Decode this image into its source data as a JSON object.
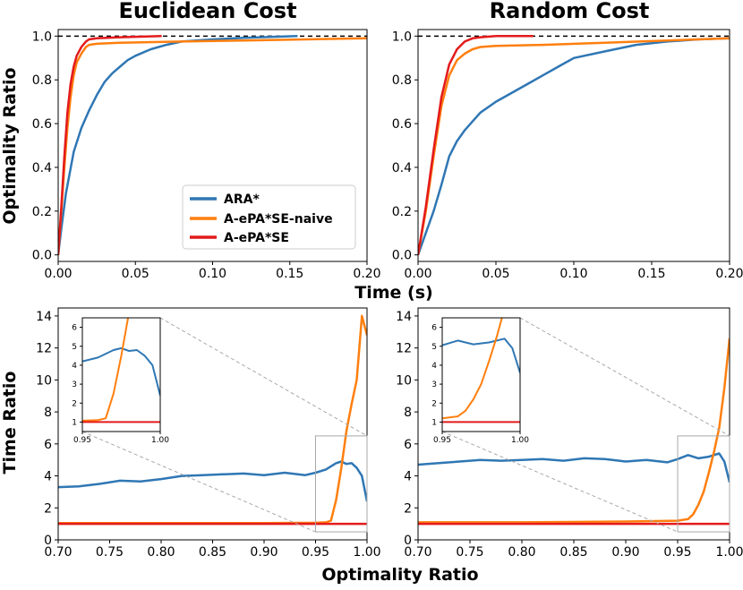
{
  "colors": {
    "ara": "#2f77b4",
    "naive": "#ff7f0e",
    "epase": "#e31a1c",
    "ref": "#000000",
    "zoom": "#a8a8a8"
  },
  "labels": {
    "title_left": "Euclidean Cost",
    "title_right": "Random Cost",
    "ylabel_top": "Optimality Ratio",
    "ylabel_bottom": "Time Ratio",
    "xlabel_top": "Time (s)",
    "xlabel_bottom": "Optimality Ratio"
  },
  "legend": [
    "ARA*",
    "A-ePA*SE-naive",
    "A-ePA*SE"
  ],
  "ticks": {
    "top_x": [
      "0.00",
      "0.05",
      "0.10",
      "0.15",
      "0.20"
    ],
    "top_y": [
      "0.0",
      "0.2",
      "0.4",
      "0.6",
      "0.8",
      "1.0"
    ],
    "bottom_x": [
      "0.70",
      "0.75",
      "0.80",
      "0.85",
      "0.90",
      "0.95",
      "1.00"
    ],
    "bottom_y": [
      "0",
      "2",
      "4",
      "6",
      "8",
      "10",
      "12",
      "14"
    ],
    "inset_x": [
      "0.95",
      "1.00"
    ],
    "inset_y": [
      "1",
      "2",
      "3",
      "4",
      "5",
      "6"
    ]
  },
  "chart_data": [
    {
      "type": "line",
      "panel": "top-left",
      "title": "Euclidean Cost",
      "xlabel": "Time (s)",
      "ylabel": "Optimality Ratio",
      "xlim": [
        0,
        0.2
      ],
      "ylim": [
        -0.03,
        1.03
      ],
      "reference_line": 1.0,
      "legend_position": "lower-right",
      "series": [
        {
          "name": "ARA*",
          "x": [
            0,
            0.002,
            0.005,
            0.01,
            0.015,
            0.02,
            0.025,
            0.03,
            0.035,
            0.04,
            0.045,
            0.05,
            0.06,
            0.07,
            0.08,
            0.1,
            0.12,
            0.155
          ],
          "y": [
            0,
            0.12,
            0.28,
            0.47,
            0.58,
            0.66,
            0.73,
            0.79,
            0.83,
            0.86,
            0.89,
            0.91,
            0.94,
            0.96,
            0.975,
            0.985,
            0.992,
            1.0
          ]
        },
        {
          "name": "A-ePA*SE-naive",
          "x": [
            0,
            0.002,
            0.004,
            0.006,
            0.008,
            0.01,
            0.012,
            0.015,
            0.018,
            0.02,
            0.025,
            0.04,
            0.08,
            0.12,
            0.16,
            0.2
          ],
          "y": [
            0,
            0.2,
            0.4,
            0.58,
            0.72,
            0.82,
            0.88,
            0.92,
            0.95,
            0.96,
            0.965,
            0.97,
            0.975,
            0.98,
            0.985,
            0.99
          ]
        },
        {
          "name": "A-ePA*SE",
          "x": [
            0,
            0.002,
            0.004,
            0.006,
            0.008,
            0.01,
            0.012,
            0.015,
            0.018,
            0.02,
            0.025,
            0.04,
            0.067
          ],
          "y": [
            0,
            0.22,
            0.45,
            0.65,
            0.78,
            0.86,
            0.91,
            0.95,
            0.975,
            0.985,
            0.99,
            0.995,
            1.0
          ]
        }
      ]
    },
    {
      "type": "line",
      "panel": "top-right",
      "title": "Random Cost",
      "xlabel": "Time (s)",
      "ylabel": "Optimality Ratio",
      "xlim": [
        0,
        0.2
      ],
      "ylim": [
        -0.03,
        1.03
      ],
      "reference_line": 1.0,
      "series": [
        {
          "name": "ARA*",
          "x": [
            0,
            0.005,
            0.01,
            0.015,
            0.02,
            0.025,
            0.03,
            0.035,
            0.04,
            0.05,
            0.06,
            0.07,
            0.08,
            0.09,
            0.1,
            0.12,
            0.14,
            0.16,
            0.18,
            0.2
          ],
          "y": [
            0,
            0.1,
            0.2,
            0.32,
            0.45,
            0.52,
            0.57,
            0.61,
            0.65,
            0.7,
            0.74,
            0.78,
            0.82,
            0.86,
            0.9,
            0.93,
            0.96,
            0.975,
            0.985,
            0.99
          ]
        },
        {
          "name": "A-ePA*SE-naive",
          "x": [
            0,
            0.005,
            0.01,
            0.015,
            0.02,
            0.025,
            0.03,
            0.035,
            0.04,
            0.05,
            0.08,
            0.12,
            0.16,
            0.2
          ],
          "y": [
            0,
            0.2,
            0.45,
            0.68,
            0.82,
            0.89,
            0.92,
            0.94,
            0.95,
            0.955,
            0.96,
            0.97,
            0.98,
            0.99
          ]
        },
        {
          "name": "A-ePA*SE",
          "x": [
            0,
            0.005,
            0.01,
            0.015,
            0.02,
            0.025,
            0.03,
            0.035,
            0.04,
            0.05,
            0.074
          ],
          "y": [
            0,
            0.22,
            0.48,
            0.72,
            0.87,
            0.94,
            0.975,
            0.99,
            0.995,
            1.0,
            1.0
          ]
        }
      ]
    },
    {
      "type": "line",
      "panel": "bottom-left",
      "xlabel": "Optimality Ratio",
      "ylabel": "Time Ratio",
      "xlim": [
        0.7,
        1.0
      ],
      "ylim": [
        0,
        14.5
      ],
      "zoom_box": {
        "xlim": [
          0.95,
          1.0
        ],
        "ylim": [
          0.5,
          6.5
        ]
      },
      "series": [
        {
          "name": "ARA*",
          "x": [
            0.7,
            0.72,
            0.74,
            0.76,
            0.78,
            0.8,
            0.82,
            0.84,
            0.86,
            0.88,
            0.9,
            0.92,
            0.94,
            0.95,
            0.96,
            0.97,
            0.975,
            0.98,
            0.985,
            0.99,
            0.995,
            1.0
          ],
          "y": [
            3.3,
            3.35,
            3.5,
            3.7,
            3.65,
            3.8,
            4.0,
            4.05,
            4.1,
            4.15,
            4.05,
            4.2,
            4.05,
            4.2,
            4.4,
            4.8,
            4.9,
            4.75,
            4.8,
            4.5,
            4.0,
            2.4
          ]
        },
        {
          "name": "A-ePA*SE-naive",
          "x": [
            0.7,
            0.8,
            0.9,
            0.95,
            0.96,
            0.965,
            0.97,
            0.975,
            0.98,
            0.985,
            0.99,
            0.995,
            1.0
          ],
          "y": [
            1.05,
            1.05,
            1.05,
            1.07,
            1.1,
            1.2,
            2.5,
            4.5,
            6.8,
            8.5,
            10.0,
            14.0,
            12.8
          ]
        },
        {
          "name": "A-ePA*SE",
          "x": [
            0.7,
            1.0
          ],
          "y": [
            1.0,
            1.0
          ]
        }
      ]
    },
    {
      "type": "line",
      "panel": "bottom-right",
      "xlabel": "Optimality Ratio",
      "ylabel": "Time Ratio",
      "xlim": [
        0.7,
        1.0
      ],
      "ylim": [
        0,
        14.5
      ],
      "zoom_box": {
        "xlim": [
          0.95,
          1.0
        ],
        "ylim": [
          0.5,
          6.5
        ]
      },
      "series": [
        {
          "name": "ARA*",
          "x": [
            0.7,
            0.72,
            0.74,
            0.76,
            0.78,
            0.8,
            0.82,
            0.84,
            0.86,
            0.88,
            0.9,
            0.92,
            0.94,
            0.95,
            0.96,
            0.97,
            0.98,
            0.99,
            0.995,
            1.0
          ],
          "y": [
            4.7,
            4.8,
            4.9,
            5.0,
            4.95,
            5.0,
            5.05,
            4.95,
            5.1,
            5.05,
            4.9,
            5.0,
            4.85,
            5.05,
            5.3,
            5.1,
            5.2,
            5.4,
            4.9,
            3.6
          ]
        },
        {
          "name": "A-ePA*SE-naive",
          "x": [
            0.7,
            0.8,
            0.9,
            0.95,
            0.96,
            0.965,
            0.97,
            0.975,
            0.98,
            0.985,
            0.99,
            0.995,
            1.0
          ],
          "y": [
            1.1,
            1.1,
            1.15,
            1.2,
            1.3,
            1.6,
            2.2,
            3.0,
            4.2,
            5.5,
            7.0,
            9.5,
            12.6
          ]
        },
        {
          "name": "A-ePA*SE",
          "x": [
            0.7,
            1.0
          ],
          "y": [
            1.0,
            1.0
          ]
        }
      ]
    }
  ]
}
